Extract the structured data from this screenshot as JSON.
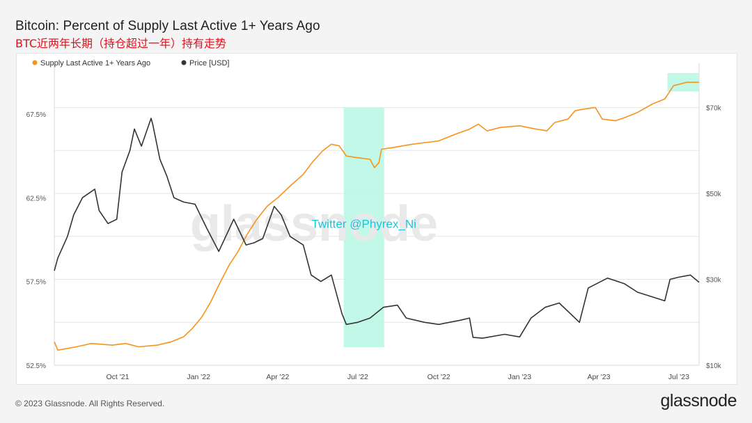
{
  "header": {
    "title": "Bitcoin: Percent of Supply Last Active 1+ Years Ago",
    "subtitle": "BTC近两年长期（持仓超过一年）持有走势"
  },
  "footer": {
    "copyright": "© 2023 Glassnode. All Rights Reserved.",
    "brand": "glassnode"
  },
  "chart_data": {
    "type": "line",
    "title": "Bitcoin: Percent of Supply Last Active 1+ Years Ago",
    "watermark": "glassnode",
    "annotation": "Twitter @Phyrex_Ni",
    "legend": {
      "placement": "top-left",
      "entries": [
        {
          "name": "Supply Last Active 1+ Years Ago",
          "color": "#f7931a"
        },
        {
          "name": "Price [USD]",
          "color": "#333333"
        }
      ]
    },
    "x_ticks": [
      "Oct '21",
      "Jan '22",
      "Apr '22",
      "Jul '22",
      "Oct '22",
      "Jan '23",
      "Apr '23",
      "Jul '23"
    ],
    "x_tick_dates": [
      "2021-10-01",
      "2022-01-01",
      "2022-04-01",
      "2022-07-01",
      "2022-10-01",
      "2023-01-01",
      "2023-04-01",
      "2023-07-01"
    ],
    "x_range": [
      "2021-07-21",
      "2023-07-24"
    ],
    "y_left": {
      "ticks": [
        "52.5%",
        "57.5%",
        "62.5%",
        "67.5%"
      ],
      "values": [
        52.5,
        57.5,
        62.5,
        67.5
      ],
      "range": [
        52.5,
        70.2
      ]
    },
    "y_right": {
      "ticks": [
        "$10k",
        "$30k",
        "$50k",
        "$70k"
      ],
      "values": [
        10000,
        30000,
        50000,
        70000
      ],
      "range": [
        10000,
        79000
      ]
    },
    "grid": true,
    "highlights": [
      {
        "from": "2022-06-15",
        "to": "2022-07-31",
        "color": "#b7f7e3"
      },
      {
        "from": "2023-06-18",
        "to": "2023-07-24",
        "color": "#b7f7e3"
      }
    ],
    "series": [
      {
        "name": "Supply Last Active 1+ Years Ago",
        "axis": "left",
        "color": "#f7931a",
        "points": [
          [
            "2021-07-21",
            53.9
          ],
          [
            "2021-07-25",
            53.4
          ],
          [
            "2021-08-15",
            53.6
          ],
          [
            "2021-09-01",
            53.8
          ],
          [
            "2021-09-25",
            53.7
          ],
          [
            "2021-10-10",
            53.8
          ],
          [
            "2021-10-25",
            53.6
          ],
          [
            "2021-11-15",
            53.7
          ],
          [
            "2021-12-01",
            53.9
          ],
          [
            "2021-12-15",
            54.2
          ],
          [
            "2021-12-25",
            54.7
          ],
          [
            "2022-01-05",
            55.4
          ],
          [
            "2022-01-15",
            56.3
          ],
          [
            "2022-01-25",
            57.4
          ],
          [
            "2022-02-05",
            58.5
          ],
          [
            "2022-02-15",
            59.3
          ],
          [
            "2022-02-25",
            60.3
          ],
          [
            "2022-03-08",
            61.2
          ],
          [
            "2022-03-20",
            62.0
          ],
          [
            "2022-04-01",
            62.5
          ],
          [
            "2022-04-15",
            63.2
          ],
          [
            "2022-04-30",
            63.9
          ],
          [
            "2022-05-10",
            64.6
          ],
          [
            "2022-05-22",
            65.3
          ],
          [
            "2022-06-01",
            65.7
          ],
          [
            "2022-06-10",
            65.6
          ],
          [
            "2022-06-18",
            65.0
          ],
          [
            "2022-06-30",
            64.9
          ],
          [
            "2022-07-15",
            64.8
          ],
          [
            "2022-07-20",
            64.3
          ],
          [
            "2022-07-25",
            64.6
          ],
          [
            "2022-07-28",
            65.4
          ],
          [
            "2022-08-10",
            65.5
          ],
          [
            "2022-09-01",
            65.7
          ],
          [
            "2022-10-01",
            65.9
          ],
          [
            "2022-10-20",
            66.3
          ],
          [
            "2022-11-05",
            66.6
          ],
          [
            "2022-11-15",
            66.9
          ],
          [
            "2022-11-25",
            66.5
          ],
          [
            "2022-12-10",
            66.7
          ],
          [
            "2023-01-01",
            66.8
          ],
          [
            "2023-01-20",
            66.6
          ],
          [
            "2023-02-01",
            66.5
          ],
          [
            "2023-02-10",
            67.0
          ],
          [
            "2023-02-25",
            67.2
          ],
          [
            "2023-03-05",
            67.7
          ],
          [
            "2023-03-15",
            67.8
          ],
          [
            "2023-03-28",
            67.9
          ],
          [
            "2023-04-05",
            67.2
          ],
          [
            "2023-04-20",
            67.1
          ],
          [
            "2023-05-01",
            67.3
          ],
          [
            "2023-05-15",
            67.6
          ],
          [
            "2023-06-01",
            68.1
          ],
          [
            "2023-06-15",
            68.4
          ],
          [
            "2023-06-25",
            69.2
          ],
          [
            "2023-07-10",
            69.4
          ],
          [
            "2023-07-24",
            69.4
          ]
        ]
      },
      {
        "name": "Price [USD]",
        "axis": "right",
        "color": "#333333",
        "points": [
          [
            "2021-07-21",
            32000
          ],
          [
            "2021-07-25",
            35000
          ],
          [
            "2021-08-05",
            40000
          ],
          [
            "2021-08-12",
            45000
          ],
          [
            "2021-08-22",
            49000
          ],
          [
            "2021-09-05",
            51000
          ],
          [
            "2021-09-10",
            46000
          ],
          [
            "2021-09-20",
            43000
          ],
          [
            "2021-09-30",
            44000
          ],
          [
            "2021-10-06",
            55000
          ],
          [
            "2021-10-15",
            60000
          ],
          [
            "2021-10-20",
            65000
          ],
          [
            "2021-10-28",
            61000
          ],
          [
            "2021-11-08",
            67500
          ],
          [
            "2021-11-10",
            66000
          ],
          [
            "2021-11-18",
            58000
          ],
          [
            "2021-11-26",
            54000
          ],
          [
            "2021-12-04",
            49000
          ],
          [
            "2021-12-15",
            48000
          ],
          [
            "2021-12-28",
            47500
          ],
          [
            "2022-01-10",
            42000
          ],
          [
            "2022-01-24",
            36500
          ],
          [
            "2022-02-10",
            44000
          ],
          [
            "2022-02-24",
            38000
          ],
          [
            "2022-03-05",
            38500
          ],
          [
            "2022-03-15",
            39500
          ],
          [
            "2022-03-28",
            47000
          ],
          [
            "2022-04-05",
            45000
          ],
          [
            "2022-04-15",
            40000
          ],
          [
            "2022-04-30",
            38000
          ],
          [
            "2022-05-09",
            31000
          ],
          [
            "2022-05-20",
            29500
          ],
          [
            "2022-06-01",
            31000
          ],
          [
            "2022-06-13",
            22000
          ],
          [
            "2022-06-18",
            19500
          ],
          [
            "2022-07-01",
            20000
          ],
          [
            "2022-07-15",
            21000
          ],
          [
            "2022-07-30",
            23500
          ],
          [
            "2022-08-15",
            24000
          ],
          [
            "2022-08-25",
            21000
          ],
          [
            "2022-09-15",
            20000
          ],
          [
            "2022-10-01",
            19500
          ],
          [
            "2022-10-26",
            20500
          ],
          [
            "2022-11-05",
            21000
          ],
          [
            "2022-11-09",
            16500
          ],
          [
            "2022-11-20",
            16300
          ],
          [
            "2022-12-15",
            17200
          ],
          [
            "2023-01-01",
            16600
          ],
          [
            "2023-01-14",
            21000
          ],
          [
            "2023-01-30",
            23500
          ],
          [
            "2023-02-15",
            24500
          ],
          [
            "2023-03-10",
            20000
          ],
          [
            "2023-03-20",
            28000
          ],
          [
            "2023-04-11",
            30300
          ],
          [
            "2023-04-30",
            29000
          ],
          [
            "2023-05-15",
            27000
          ],
          [
            "2023-06-15",
            25000
          ],
          [
            "2023-06-21",
            30000
          ],
          [
            "2023-07-01",
            30500
          ],
          [
            "2023-07-14",
            31000
          ],
          [
            "2023-07-24",
            29300
          ]
        ]
      }
    ]
  }
}
